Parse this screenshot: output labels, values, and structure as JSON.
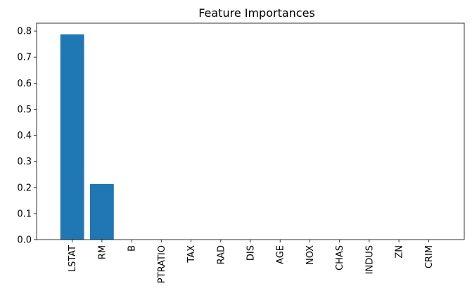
{
  "chart_data": {
    "type": "bar",
    "title": "Feature Importances",
    "xlabel": "",
    "ylabel": "",
    "categories": [
      "LSTAT",
      "RM",
      "B",
      "PTRATIO",
      "TAX",
      "RAD",
      "DIS",
      "AGE",
      "NOX",
      "CHAS",
      "INDUS",
      "ZN",
      "CRIM"
    ],
    "values": [
      0.787,
      0.213,
      0,
      0,
      0,
      0,
      0,
      0,
      0,
      0,
      0,
      0,
      0
    ],
    "ylim": [
      0,
      0.83
    ],
    "yticks": [
      "0.0",
      "0.1",
      "0.2",
      "0.3",
      "0.4",
      "0.5",
      "0.6",
      "0.7",
      "0.8"
    ],
    "grid": false,
    "legend": "none",
    "bar_color": "#1f77b4"
  }
}
